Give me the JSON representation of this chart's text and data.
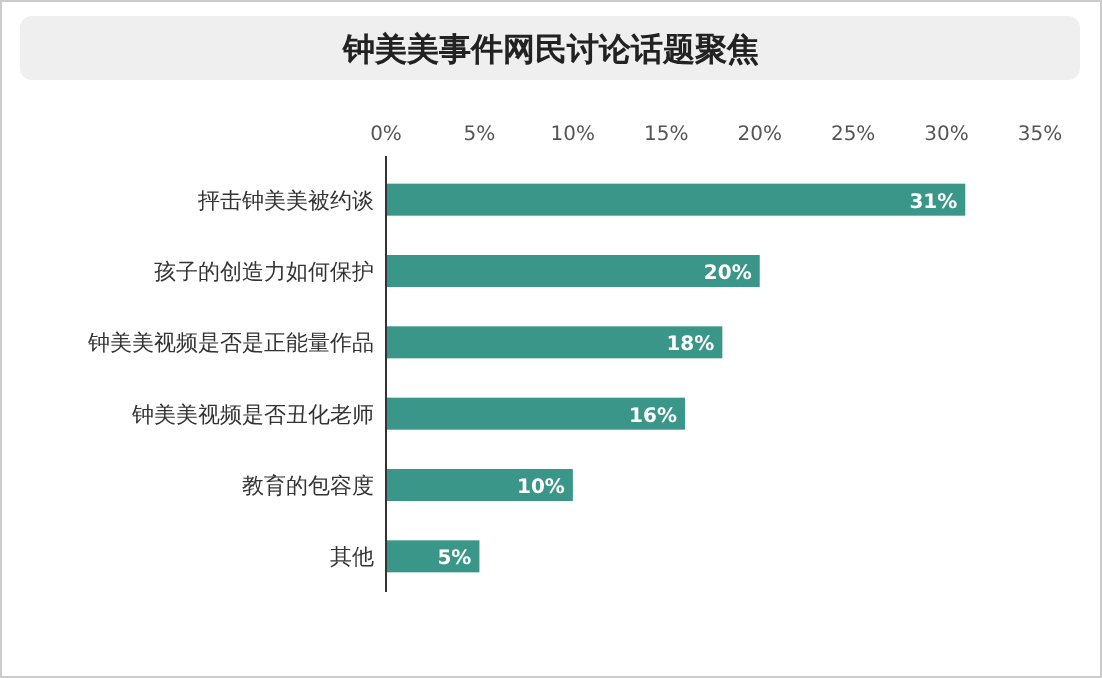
{
  "chart_data": {
    "type": "bar",
    "orientation": "horizontal",
    "title": "钟美美事件网民讨论话题聚焦",
    "categories": [
      "抨击钟美美被约谈",
      "孩子的创造力如何保护",
      "钟美美视频是否是正能量作品",
      "钟美美视频是否丑化老师",
      "教育的包容度",
      "其他"
    ],
    "values": [
      31,
      20,
      18,
      16,
      10,
      5
    ],
    "value_labels": [
      "31%",
      "20%",
      "18%",
      "16%",
      "10%",
      "5%"
    ],
    "color": "#3a9688",
    "xlim": [
      0,
      35
    ],
    "xticks": [
      {
        "value": 0,
        "label": "0%"
      },
      {
        "value": 5,
        "label": "5%"
      },
      {
        "value": 10,
        "label": "10%"
      },
      {
        "value": 15,
        "label": "15%"
      },
      {
        "value": 20,
        "label": "20%"
      },
      {
        "value": 25,
        "label": "25%"
      },
      {
        "value": 30,
        "label": "30%"
      },
      {
        "value": 35,
        "label": "35%"
      }
    ]
  }
}
